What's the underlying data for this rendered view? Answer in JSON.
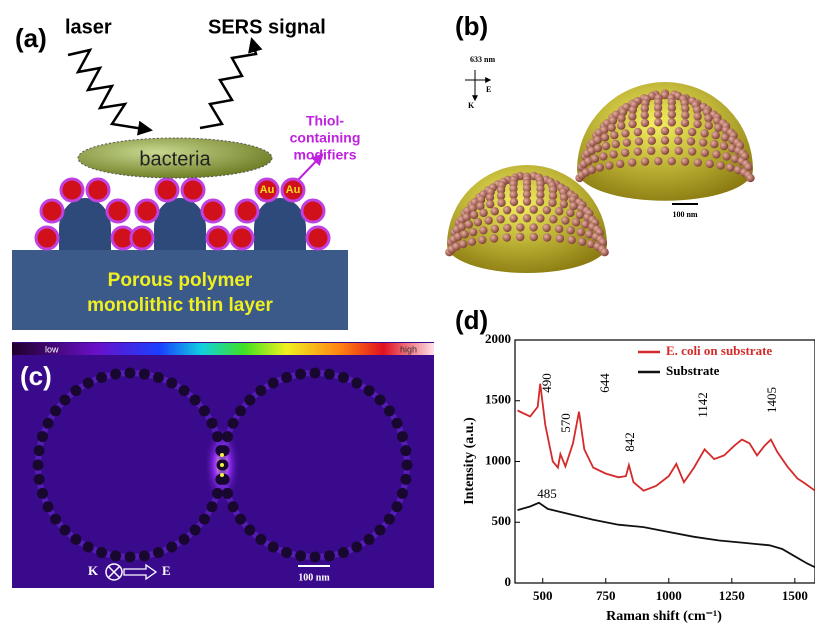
{
  "panel_a": {
    "label": "(a)",
    "laser": "laser",
    "signal": "SERS signal",
    "bacteria": "bacteria",
    "modifiers": [
      "Thiol-",
      "containing",
      "modifiers"
    ],
    "au": [
      "Au",
      "Au"
    ],
    "substrate": [
      "Porous polymer",
      "monolithic thin layer"
    ]
  },
  "panel_b": {
    "label": "(b)",
    "wavelength": "633 nm",
    "k": "K",
    "e": "E",
    "scale": "100 nm"
  },
  "panel_c": {
    "label": "(c)",
    "low": "low",
    "high": "high",
    "k": "K",
    "e": "E",
    "scale": "100 nm"
  },
  "chart_data": {
    "type": "line",
    "label": "(d)",
    "x_label": "Raman shift (cm⁻¹)",
    "y_label": "Intensity (a.u.)",
    "xlim": [
      390,
      1580
    ],
    "ylim": [
      0,
      2000
    ],
    "xticks": [
      500,
      750,
      1000,
      1250,
      1500
    ],
    "yticks": [
      0,
      500,
      1000,
      1500,
      2000
    ],
    "legend": "upper right",
    "series": [
      {
        "name": "E. coli on substrate",
        "color": "#d42a2a",
        "x": [
          400,
          450,
          480,
          490,
          510,
          540,
          560,
          570,
          590,
          620,
          644,
          665,
          700,
          750,
          800,
          830,
          842,
          860,
          900,
          950,
          1000,
          1030,
          1060,
          1100,
          1142,
          1180,
          1220,
          1260,
          1290,
          1320,
          1350,
          1380,
          1405,
          1430,
          1470,
          1510,
          1540,
          1580
        ],
        "values": [
          1420,
          1370,
          1450,
          1640,
          1300,
          1000,
          950,
          1060,
          960,
          1150,
          1410,
          1100,
          950,
          900,
          870,
          880,
          970,
          830,
          760,
          800,
          880,
          980,
          830,
          950,
          1100,
          1020,
          1050,
          1130,
          1180,
          1150,
          1050,
          1130,
          1180,
          1080,
          960,
          860,
          820,
          760
        ]
      },
      {
        "name": "Substrate",
        "color": "#111111",
        "x": [
          400,
          450,
          485,
          520,
          600,
          700,
          800,
          900,
          1000,
          1100,
          1200,
          1300,
          1350,
          1400,
          1450,
          1500,
          1550,
          1580
        ],
        "values": [
          600,
          630,
          660,
          610,
          570,
          520,
          480,
          460,
          420,
          380,
          350,
          330,
          320,
          310,
          280,
          220,
          160,
          130
        ]
      }
    ],
    "annotations": [
      "490",
      "570",
      "644",
      "842",
      "1142",
      "1405",
      "485"
    ]
  }
}
